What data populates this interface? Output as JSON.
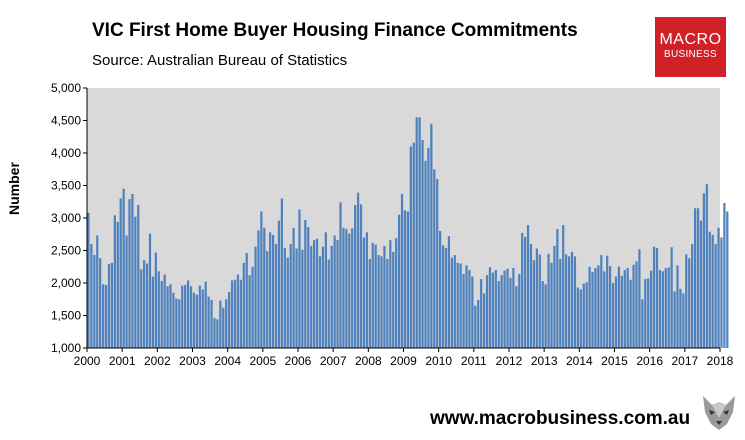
{
  "title": "VIC First Home Buyer Housing Finance Commitments",
  "subtitle": "Source: Australian Bureau of Statistics",
  "logo": {
    "line1": "MACRO",
    "line2": "BUSINESS",
    "color": "#d22027"
  },
  "footer": "www.macrobusiness.com.au",
  "chart_data": {
    "type": "bar",
    "ylabel": "Number",
    "ylim": [
      1000,
      5000
    ],
    "yticks": [
      "1,000",
      "1,500",
      "2,000",
      "2,500",
      "3,000",
      "3,500",
      "4,000",
      "4,500",
      "5,000"
    ],
    "xticks": [
      "2000",
      "2001",
      "2002",
      "2003",
      "2004",
      "2005",
      "2006",
      "2007",
      "2008",
      "2009",
      "2010",
      "2011",
      "2012",
      "2013",
      "2014",
      "2015",
      "2016",
      "2017",
      "2018"
    ],
    "x_start": "2000-01",
    "frequency": "monthly",
    "bar_color": "#4f81bd",
    "plot_background": "#d9d9d9",
    "grid": false,
    "values": [
      3080,
      2600,
      2430,
      2730,
      2380,
      1980,
      1970,
      2290,
      2310,
      3040,
      2940,
      3300,
      3450,
      2730,
      3290,
      3370,
      3020,
      3200,
      2210,
      2350,
      2300,
      2760,
      2100,
      2470,
      2180,
      2030,
      2130,
      1950,
      1980,
      1850,
      1760,
      1750,
      1960,
      1970,
      2040,
      1950,
      1850,
      1820,
      1960,
      1900,
      2020,
      1790,
      1740,
      1460,
      1440,
      1730,
      1620,
      1750,
      1860,
      2040,
      2050,
      2130,
      2050,
      2310,
      2460,
      2120,
      2250,
      2560,
      2810,
      3100,
      2850,
      2490,
      2780,
      2740,
      2600,
      2960,
      3300,
      2540,
      2390,
      2600,
      2850,
      2530,
      3130,
      2510,
      2970,
      2860,
      2570,
      2660,
      2680,
      2410,
      2560,
      2780,
      2360,
      2570,
      2730,
      2660,
      3240,
      2850,
      2830,
      2760,
      2840,
      3200,
      3390,
      3210,
      2700,
      2780,
      2370,
      2620,
      2590,
      2430,
      2410,
      2570,
      2370,
      2660,
      2480,
      2690,
      3050,
      3370,
      3120,
      3100,
      4100,
      4160,
      4550,
      4550,
      4200,
      3880,
      4080,
      4450,
      3750,
      3600,
      2800,
      2580,
      2540,
      2720,
      2390,
      2430,
      2310,
      2300,
      2140,
      2270,
      2200,
      2100,
      1650,
      1740,
      2060,
      1840,
      2120,
      2240,
      2160,
      2200,
      2030,
      2120,
      2190,
      2220,
      2080,
      2230,
      1950,
      2140,
      2770,
      2710,
      2890,
      2600,
      2350,
      2530,
      2440,
      2030,
      1980,
      2450,
      2310,
      2570,
      2830,
      2370,
      2890,
      2440,
      2410,
      2480,
      2410,
      1930,
      1900,
      1990,
      2010,
      2250,
      2170,
      2230,
      2270,
      2430,
      2180,
      2420,
      2260,
      2000,
      2100,
      2250,
      2110,
      2200,
      2230,
      2050,
      2280,
      2330,
      2520,
      1750,
      2060,
      2070,
      2190,
      2560,
      2540,
      2200,
      2180,
      2230,
      2240,
      2550,
      1870,
      2270,
      1910,
      1840,
      2440,
      2380,
      2600,
      3150,
      3150,
      2960,
      3380,
      3520,
      2790,
      2740,
      2600,
      2850,
      2700,
      3230,
      3100
    ]
  }
}
